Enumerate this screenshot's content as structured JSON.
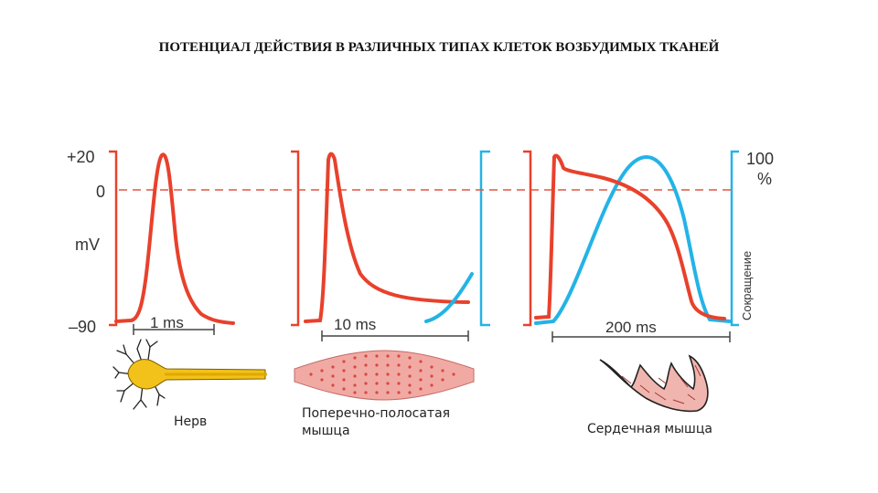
{
  "title": "ПОТЕНЦИАЛ ДЕЙСТВИЯ В РАЗЛИЧНЫХ ТИПАХ КЛЕТОК ВОЗБУДИМЫХ ТКАНЕЙ",
  "axis": {
    "tick_top": "+20",
    "tick_zero": "0",
    "tick_bottom": "–90",
    "unit": "mV",
    "right_top": "100",
    "right_percent": "%",
    "right_label": "Сокращение"
  },
  "scales": {
    "nerve": "1 ms",
    "skeletal": "10 ms",
    "cardiac": "200 ms"
  },
  "captions": {
    "nerve": "Нерв",
    "skeletal_line1": "Поперечно-полосатая",
    "skeletal_line2": "мышца",
    "cardiac": "Сердечная мышца"
  },
  "colors": {
    "action_potential": "#e8412c",
    "contraction": "#24b3e6",
    "nerve_cell": "#f2c21a",
    "muscle": "#f1a9a4"
  }
}
